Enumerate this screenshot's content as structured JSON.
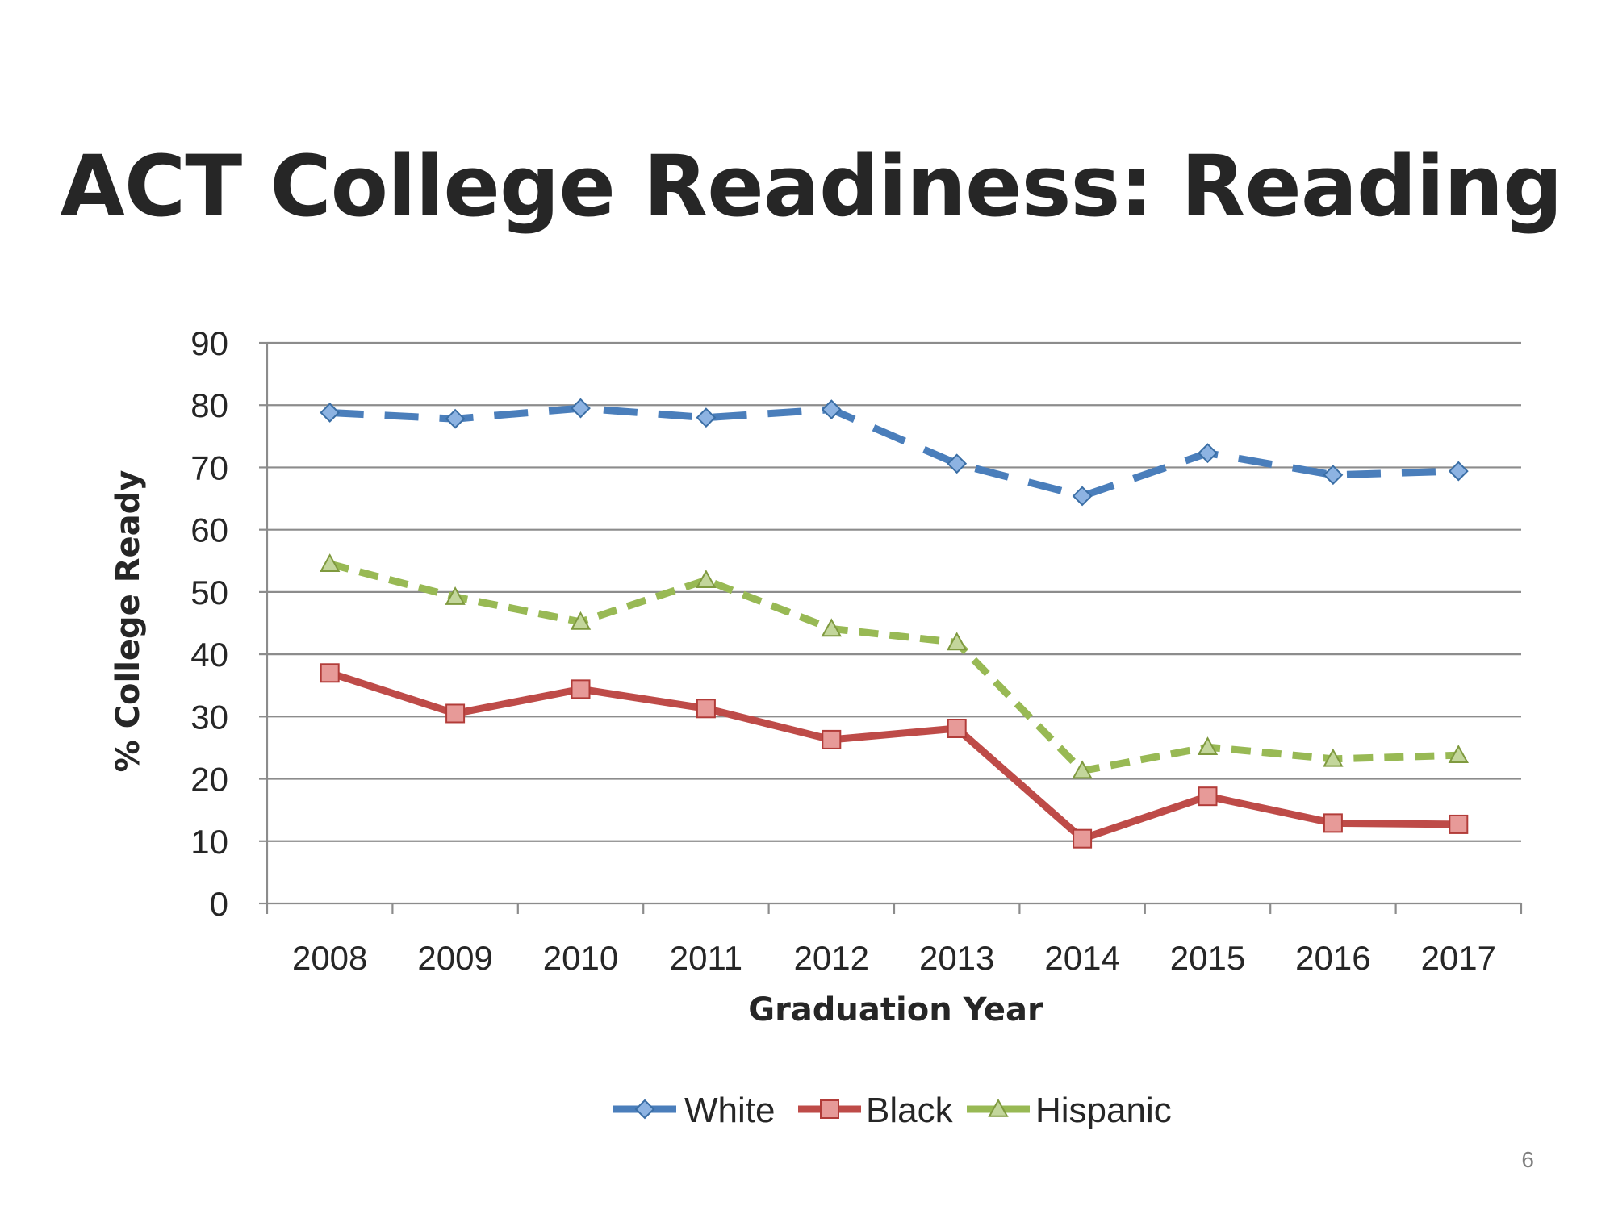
{
  "title": "ACT College Readiness: Reading",
  "page_number": "6",
  "chart_data": {
    "type": "line",
    "xlabel": "Graduation Year",
    "ylabel": "% College Ready",
    "ylim": [
      0,
      90
    ],
    "yticks": [
      0,
      10,
      20,
      30,
      40,
      50,
      60,
      70,
      80,
      90
    ],
    "categories": [
      "2008",
      "2009",
      "2010",
      "2011",
      "2012",
      "2013",
      "2014",
      "2015",
      "2016",
      "2017"
    ],
    "grid": true,
    "legend_position": "bottom",
    "series": [
      {
        "name": "White",
        "values": [
          78.8,
          77.8,
          79.5,
          78.0,
          79.3,
          70.6,
          65.4,
          72.3,
          68.8,
          69.4
        ],
        "color": "#4a7ebb",
        "marker": "diamond",
        "marker_fill": "#8db3e2",
        "dash": "dashed"
      },
      {
        "name": "Black",
        "values": [
          37.0,
          30.5,
          34.4,
          31.3,
          26.3,
          28.1,
          10.4,
          17.2,
          12.9,
          12.7
        ],
        "color": "#be4b48",
        "marker": "square",
        "marker_fill": "#e79a98",
        "dash": "solid"
      },
      {
        "name": "Hispanic",
        "values": [
          54.5,
          49.2,
          45.2,
          51.9,
          44.1,
          41.9,
          21.3,
          25.1,
          23.2,
          23.8
        ],
        "color": "#98b954",
        "marker": "triangle",
        "marker_fill": "#c3d69b",
        "dash": "short-dash"
      }
    ]
  }
}
